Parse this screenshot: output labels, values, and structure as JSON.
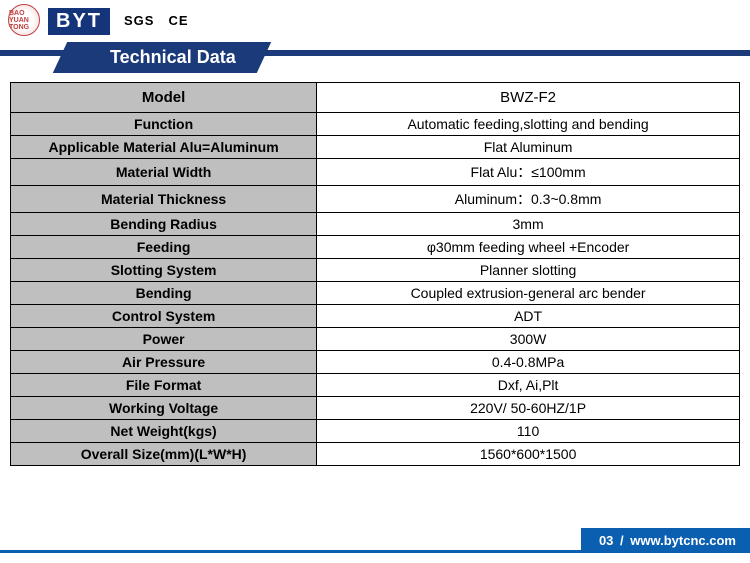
{
  "header": {
    "badge_text": "BAO YUAN TONG",
    "brand": "BYT",
    "brand_sub": "",
    "cert1": "SGS",
    "cert2": "CE"
  },
  "banner_title": "Technical Data",
  "specs": [
    {
      "label": "Model",
      "value": "BWZ-F2",
      "model": true
    },
    {
      "label": "Function",
      "value": "Automatic feeding,slotting and bending"
    },
    {
      "label": "Applicable Material  Alu=Aluminum",
      "value": "Flat Aluminum"
    },
    {
      "label": "Material Width",
      "value": "Flat Alu：≤100mm"
    },
    {
      "label": "Material Thickness",
      "value": "Aluminum：0.3~0.8mm"
    },
    {
      "label": "Bending Radius",
      "value": "3mm"
    },
    {
      "label": "Feeding",
      "value": "φ30mm feeding wheel +Encoder"
    },
    {
      "label": "Slotting System",
      "value": "Planner slotting"
    },
    {
      "label": "Bending",
      "value": "Coupled extrusion-general arc bender"
    },
    {
      "label": "Control System",
      "value": "ADT"
    },
    {
      "label": "Power",
      "value": "300W"
    },
    {
      "label": "Air Pressure",
      "value": "0.4-0.8MPa"
    },
    {
      "label": "File Format",
      "value": "Dxf, Ai,Plt"
    },
    {
      "label": "Working Voltage",
      "value": "220V/ 50-60HZ/1P"
    },
    {
      "label": "Net Weight(kgs)",
      "value": "110"
    },
    {
      "label": "Overall Size(mm)(L*W*H)",
      "value": "1560*600*1500"
    }
  ],
  "footer": {
    "page": "03",
    "url": "www.bytcnc.com"
  },
  "colors": {
    "header_bg": "#1a3a7a",
    "label_bg": "#bfbfbf",
    "border": "#000000",
    "footer_bg": "#0b5fb0"
  }
}
